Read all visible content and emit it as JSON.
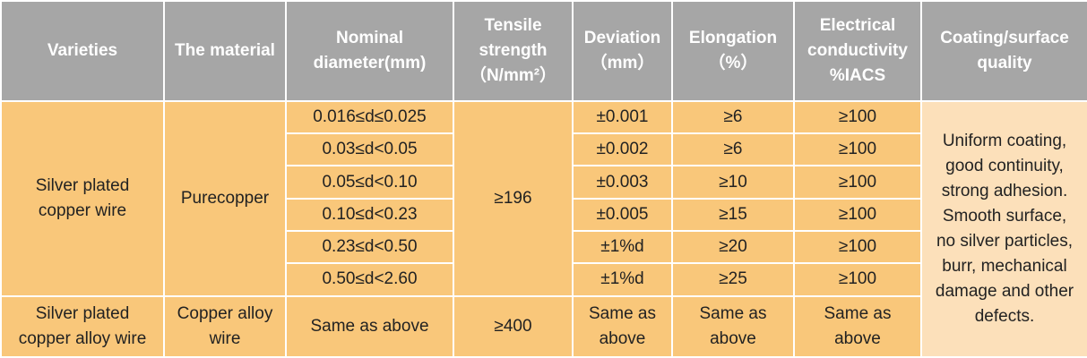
{
  "table": {
    "header": [
      [
        "Varieties"
      ],
      [
        "The material"
      ],
      [
        "Nominal",
        "diameter(mm)"
      ],
      [
        "Tensile",
        "strength",
        "（N/mm²）"
      ],
      [
        "Deviation",
        "（mm）"
      ],
      [
        "Elongation",
        "（%）"
      ],
      [
        "Electrical",
        "conductivity",
        "%IACS"
      ],
      [
        "Coating/surface",
        "quality"
      ]
    ],
    "group1": {
      "variety": [
        "Silver plated",
        "copper wire"
      ],
      "material": "Purecopper",
      "tensile": "≥196",
      "coating": [
        "Uniform coating,",
        "good continuity,",
        "strong adhesion.",
        "Smooth surface,",
        "no silver particles,",
        "burr, mechanical",
        "damage and other",
        "defects."
      ],
      "rows": [
        [
          "0.016≤d≤0.025",
          "±0.001",
          "≥6",
          "≥100"
        ],
        [
          "0.03≤d<0.05",
          "±0.002",
          "≥6",
          "≥100"
        ],
        [
          "0.05≤d<0.10",
          "±0.003",
          "≥10",
          "≥100"
        ],
        [
          "0.10≤d<0.23",
          "±0.005",
          "≥15",
          "≥100"
        ],
        [
          "0.23≤d<0.50",
          "±1%d",
          "≥20",
          "≥100"
        ],
        [
          "0.50≤d<2.60",
          "±1%d",
          "≥25",
          "≥100"
        ]
      ]
    },
    "group2": {
      "variety": [
        "Silver plated",
        "copper alloy wire"
      ],
      "material": [
        "Copper alloy",
        "wire"
      ],
      "diameter": "Same as above",
      "tensile": "≥400",
      "deviation": [
        "Same as",
        "above"
      ],
      "elongation": [
        "Same as",
        "above"
      ],
      "conductivity": [
        "Same as",
        "above"
      ]
    }
  }
}
